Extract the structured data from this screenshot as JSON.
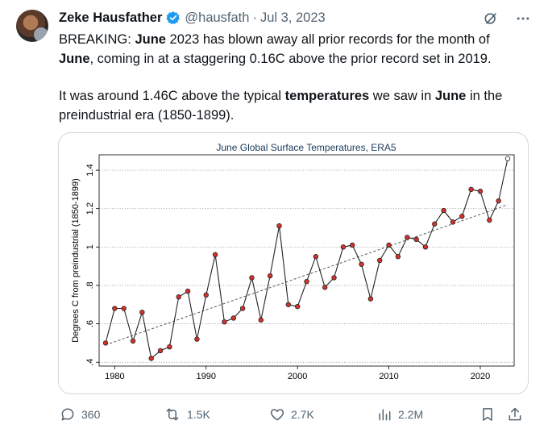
{
  "author": {
    "name": "Zeke Hausfather",
    "handle": "@hausfath",
    "date": "Jul 3, 2023"
  },
  "tweet": {
    "p1": [
      "BREAKING: ",
      "June",
      " 2023 has blown away all prior records for the month of ",
      "June",
      ", coming in at a staggering 0.16C above the prior record set in 2019."
    ],
    "p2": [
      "It was around 1.46C above the typical ",
      "temperatures",
      " we saw in ",
      "June",
      " in the preindustrial era (1850-1899)."
    ]
  },
  "actions": {
    "replies": "360",
    "reposts": "1.5K",
    "likes": "2.7K",
    "views": "2.2M"
  },
  "icons": {
    "verified": "verified-badge-icon",
    "grok": "grok-icon",
    "more": "more-icon",
    "reply": "reply-icon",
    "repost": "repost-icon",
    "like": "heart-icon",
    "views": "views-icon",
    "bookmark": "bookmark-icon",
    "share": "share-icon"
  },
  "colors": {
    "accent": "#1d9bf0",
    "point_fill": "#d6312b",
    "trend": "#555555"
  },
  "chart_data": {
    "type": "line",
    "title": "June Global Surface Temperatures, ERA5",
    "ylabel": "Degrees C from preindustrial (1850-1899)",
    "xlabel": "",
    "xlim": [
      1979,
      2023
    ],
    "ylim": [
      0.38,
      1.48
    ],
    "xticks": [
      "1980",
      "1990",
      "2000",
      "2010",
      "2020"
    ],
    "yticks": [
      ".4",
      ".6",
      ".8",
      "1",
      "1.2",
      "1.4"
    ],
    "grid": "horizontal dotted",
    "x": [
      1979,
      1980,
      1981,
      1982,
      1983,
      1984,
      1985,
      1986,
      1987,
      1988,
      1989,
      1990,
      1991,
      1992,
      1993,
      1994,
      1995,
      1996,
      1997,
      1998,
      1999,
      2000,
      2001,
      2002,
      2003,
      2004,
      2005,
      2006,
      2007,
      2008,
      2009,
      2010,
      2011,
      2012,
      2013,
      2014,
      2015,
      2016,
      2017,
      2018,
      2019,
      2020,
      2021,
      2022,
      2023
    ],
    "values": [
      0.5,
      0.68,
      0.68,
      0.51,
      0.66,
      0.42,
      0.46,
      0.48,
      0.74,
      0.77,
      0.52,
      0.75,
      0.96,
      0.61,
      0.63,
      0.68,
      0.84,
      0.62,
      0.85,
      1.11,
      0.7,
      0.69,
      0.82,
      0.95,
      0.79,
      0.84,
      1.0,
      1.01,
      0.91,
      0.73,
      0.93,
      1.01,
      0.95,
      1.05,
      1.04,
      1.0,
      1.12,
      1.19,
      1.13,
      1.16,
      1.3,
      1.29,
      1.14,
      1.24,
      1.46
    ],
    "trend": {
      "x": [
        1979,
        2023
      ],
      "y": [
        0.49,
        1.22
      ]
    }
  }
}
